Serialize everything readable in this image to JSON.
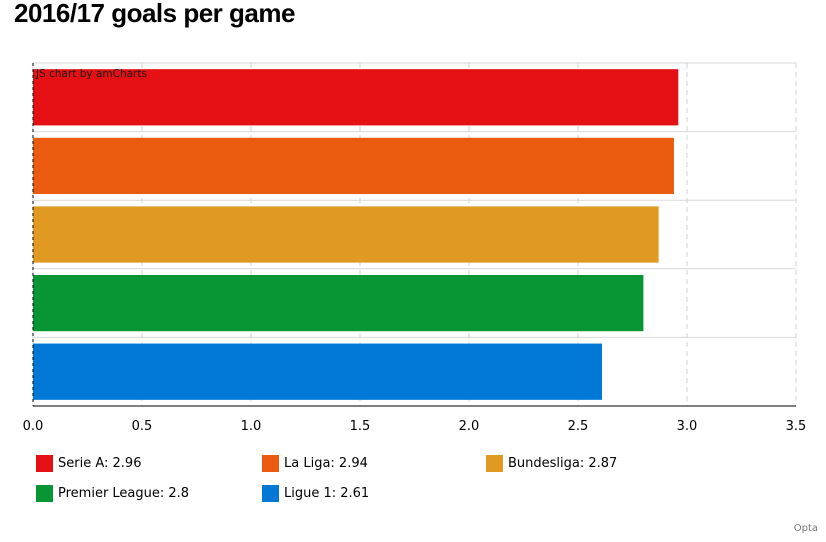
{
  "title": "2016/17 goals per game",
  "chart_credit": "JS chart by amCharts",
  "source": "Opta",
  "chart_data": {
    "type": "bar",
    "orientation": "horizontal",
    "categories": [
      "Serie A",
      "La Liga",
      "Bundesliga",
      "Premier League",
      "Ligue 1"
    ],
    "values": [
      2.96,
      2.94,
      2.87,
      2.8,
      2.61
    ],
    "colors": [
      "#e51013",
      "#ea5a0f",
      "#e09a21",
      "#089533",
      "#0178d6"
    ],
    "xlim": [
      0,
      3.5
    ],
    "ticks": [
      "0.0",
      "0.5",
      "1.0",
      "1.5",
      "2.0",
      "2.5",
      "3.0",
      "3.5"
    ],
    "grid": true,
    "legend_position": "bottom",
    "legend": [
      {
        "label": "Serie A: 2.96",
        "color": "#e51013"
      },
      {
        "label": "La Liga: 2.94",
        "color": "#ea5a0f"
      },
      {
        "label": "Bundesliga: 2.87",
        "color": "#e09a21"
      },
      {
        "label": "Premier League: 2.8",
        "color": "#089533"
      },
      {
        "label": "Ligue 1: 2.61",
        "color": "#0178d6"
      }
    ]
  }
}
